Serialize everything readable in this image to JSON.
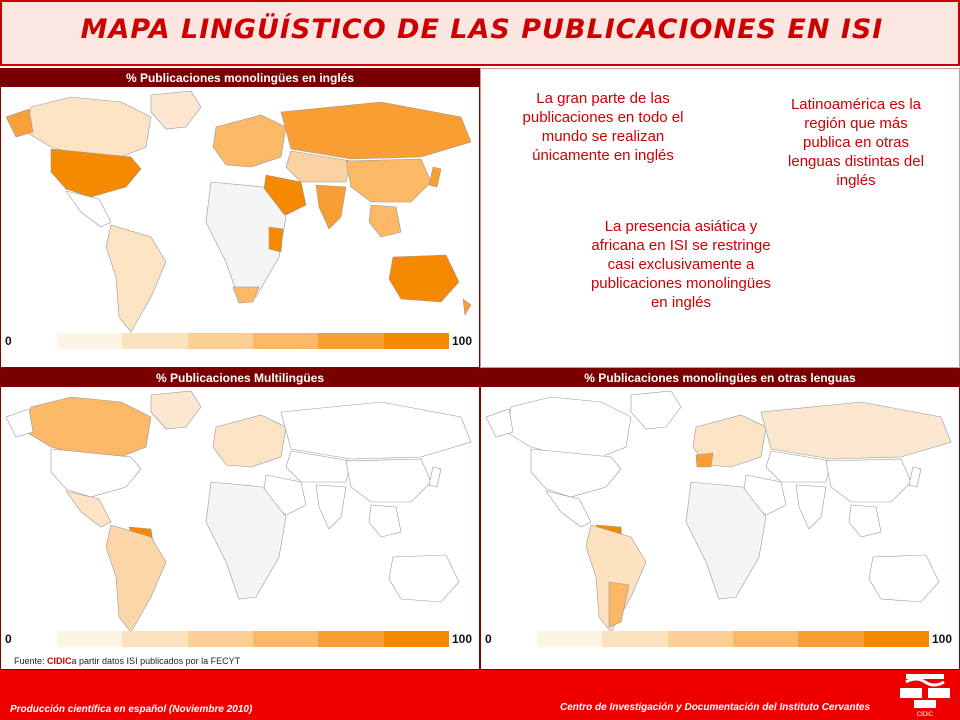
{
  "title": "MAPA LINGÜÍSTICO DE LAS PUBLICACIONES EN ISI",
  "maps": [
    {
      "header": "% Publicaciones monolingües en inglés",
      "legend_min": "0",
      "legend_max": "100",
      "highlighted_regions": [
        "USA",
        "Canada",
        "Australia",
        "Europe",
        "Russia",
        "China",
        "India",
        "Middle East",
        "East Africa"
      ]
    },
    {
      "header": "% Publicaciones Multilingües",
      "legend_min": "0",
      "legend_max": "100",
      "highlighted_regions": [
        "Canada",
        "Latin America",
        "Western Europe"
      ]
    },
    {
      "header": "% Publicaciones monolingües en otras lenguas",
      "legend_min": "0",
      "legend_max": "100",
      "highlighted_regions": [
        "Colombia",
        "Argentina",
        "Western Europe",
        "Russia"
      ]
    }
  ],
  "notes": {
    "note1": "La gran parte de las publicaciones en todo el mundo se realizan únicamente en inglés",
    "note2": "Latinoamérica es la región que más publica en otras lenguas distintas del inglés",
    "note3": "La presencia asiática y africana en ISI se restringe casi exclusivamente a publicaciones monolingües en inglés"
  },
  "source": {
    "prefix": "Fuente: ",
    "org": "CIDIC",
    "rest": "a partir datos ISI publicados por la FECYT"
  },
  "footer": {
    "left": "Producción científica en español (Noviembre 2010)",
    "right": "Centro de Investigación y Documentación del Instituto Cervantes"
  },
  "logo_text": "CIDIC",
  "colors": {
    "accent_red": "#cc0000",
    "header_dark_red": "#7a0000",
    "scale": [
      "#fff3e4",
      "#fde2bf",
      "#fccf95",
      "#fbb866",
      "#f99e33",
      "#f58a00"
    ]
  }
}
